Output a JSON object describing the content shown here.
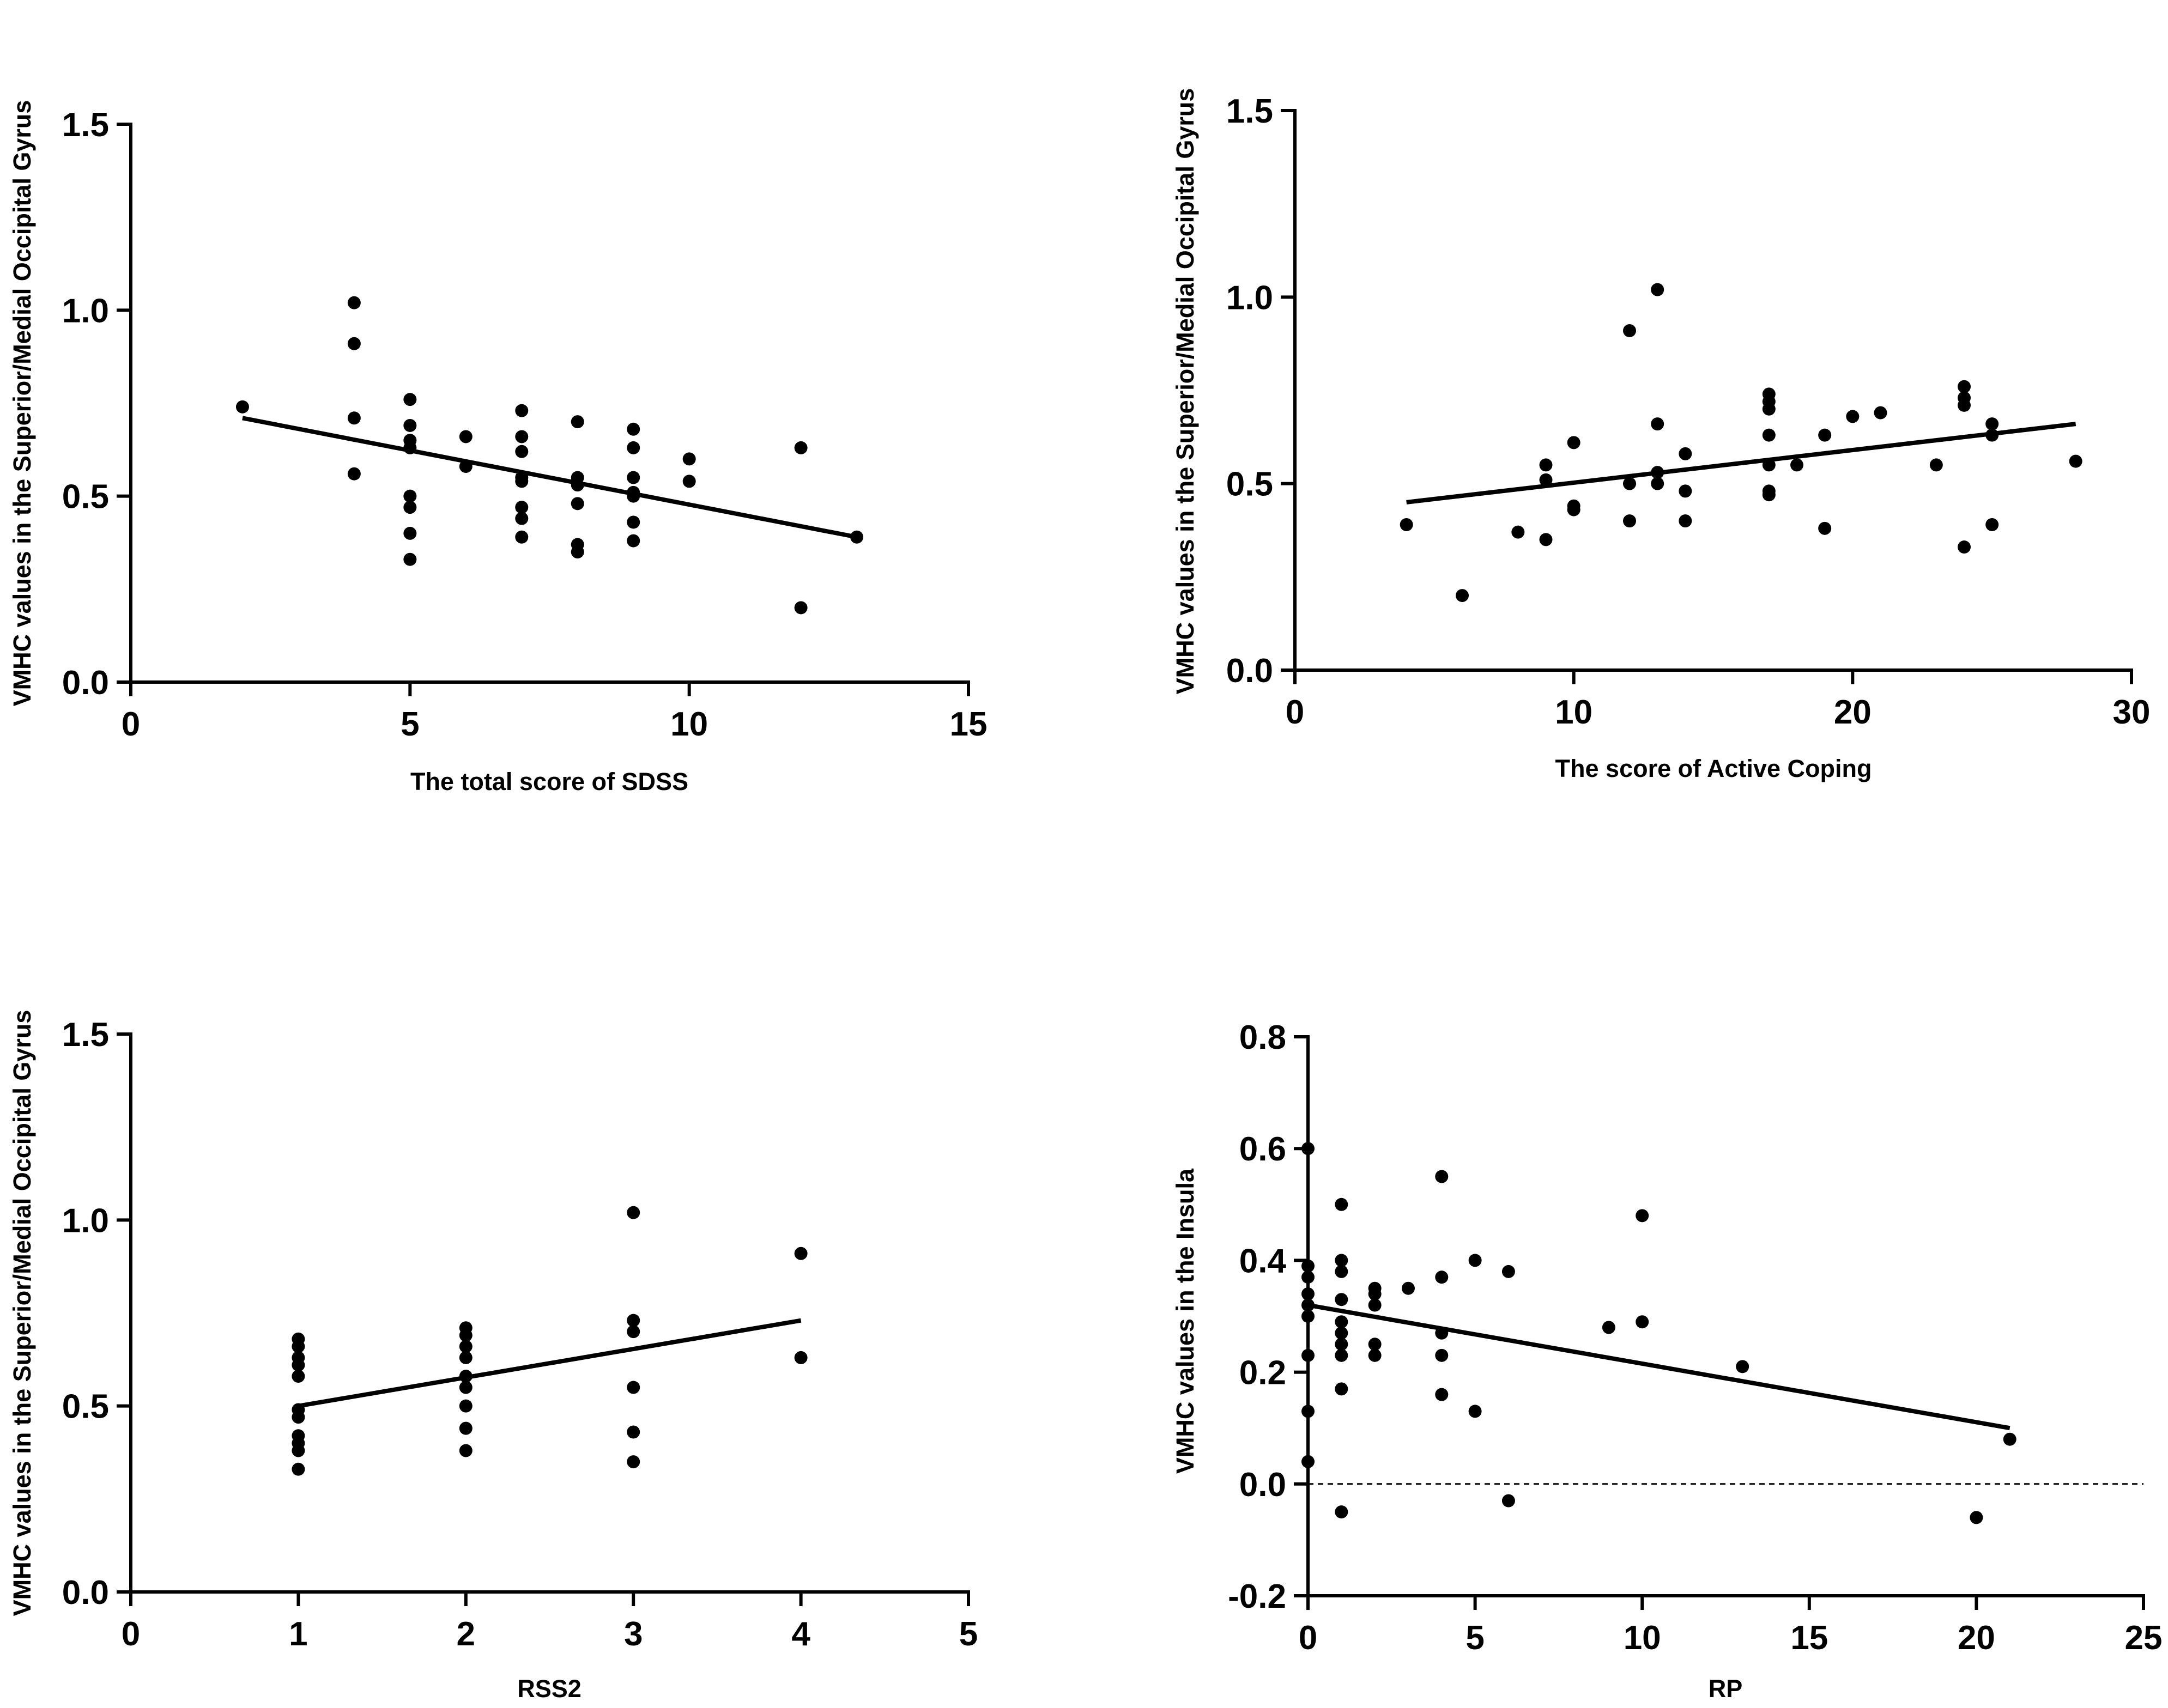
{
  "chart_data": [
    {
      "type": "scatter",
      "id": "sdss",
      "xlabel": "The total score of SDSS",
      "ylabel": "VMHC values in the Superior/Medial Occipital Gyrus",
      "xlim": [
        0,
        15
      ],
      "ylim": [
        0,
        1.5
      ],
      "xticks": [
        0,
        5,
        10,
        15
      ],
      "yticks": [
        0.0,
        0.5,
        1.0,
        1.5
      ],
      "xtick_labels": [
        "0",
        "5",
        "10",
        "15"
      ],
      "ytick_labels": [
        "0.0",
        "0.5",
        "1.0",
        "1.5"
      ],
      "points": [
        [
          2,
          0.74
        ],
        [
          4,
          1.02
        ],
        [
          4,
          0.91
        ],
        [
          4,
          0.71
        ],
        [
          4,
          0.56
        ],
        [
          5,
          0.76
        ],
        [
          5,
          0.69
        ],
        [
          5,
          0.65
        ],
        [
          5,
          0.63
        ],
        [
          5,
          0.5
        ],
        [
          5,
          0.47
        ],
        [
          5,
          0.4
        ],
        [
          5,
          0.33
        ],
        [
          6,
          0.66
        ],
        [
          6,
          0.58
        ],
        [
          7,
          0.73
        ],
        [
          7,
          0.66
        ],
        [
          7,
          0.62
        ],
        [
          7,
          0.55
        ],
        [
          7,
          0.54
        ],
        [
          7,
          0.47
        ],
        [
          7,
          0.44
        ],
        [
          7,
          0.39
        ],
        [
          8,
          0.7
        ],
        [
          8,
          0.55
        ],
        [
          8,
          0.53
        ],
        [
          8,
          0.48
        ],
        [
          8,
          0.37
        ],
        [
          8,
          0.35
        ],
        [
          9,
          0.68
        ],
        [
          9,
          0.63
        ],
        [
          9,
          0.55
        ],
        [
          9,
          0.51
        ],
        [
          9,
          0.5
        ],
        [
          9,
          0.43
        ],
        [
          9,
          0.38
        ],
        [
          10,
          0.6
        ],
        [
          10,
          0.54
        ],
        [
          12,
          0.63
        ],
        [
          12,
          0.2
        ],
        [
          13,
          0.39
        ]
      ],
      "fit_line": [
        [
          2,
          0.71
        ],
        [
          13,
          0.39
        ]
      ]
    },
    {
      "type": "scatter",
      "id": "active-coping",
      "xlabel": "The score of Active Coping",
      "ylabel": "VMHC values in the Superior/Medial Occipital Gyrus",
      "xlim": [
        0,
        30
      ],
      "ylim": [
        0,
        1.5
      ],
      "xticks": [
        0,
        10,
        20,
        30
      ],
      "yticks": [
        0.0,
        0.5,
        1.0,
        1.5
      ],
      "xtick_labels": [
        "0",
        "10",
        "20",
        "30"
      ],
      "ytick_labels": [
        "0.0",
        "0.5",
        "1.0",
        "1.5"
      ],
      "points": [
        [
          4,
          0.39
        ],
        [
          6,
          0.2
        ],
        [
          8,
          0.37
        ],
        [
          9,
          0.55
        ],
        [
          9,
          0.51
        ],
        [
          9,
          0.35
        ],
        [
          10,
          0.61
        ],
        [
          10,
          0.44
        ],
        [
          10,
          0.43
        ],
        [
          12,
          0.91
        ],
        [
          12,
          0.5
        ],
        [
          12,
          0.4
        ],
        [
          13,
          1.02
        ],
        [
          13,
          0.66
        ],
        [
          13,
          0.53
        ],
        [
          13,
          0.5
        ],
        [
          14,
          0.58
        ],
        [
          14,
          0.48
        ],
        [
          14,
          0.4
        ],
        [
          17,
          0.74
        ],
        [
          17,
          0.72
        ],
        [
          17,
          0.7
        ],
        [
          17,
          0.63
        ],
        [
          17,
          0.55
        ],
        [
          17,
          0.48
        ],
        [
          17,
          0.47
        ],
        [
          18,
          0.55
        ],
        [
          19,
          0.63
        ],
        [
          19,
          0.38
        ],
        [
          20,
          0.68
        ],
        [
          21,
          0.69
        ],
        [
          23,
          0.55
        ],
        [
          24,
          0.76
        ],
        [
          24,
          0.73
        ],
        [
          24,
          0.71
        ],
        [
          24,
          0.33
        ],
        [
          25,
          0.66
        ],
        [
          25,
          0.63
        ],
        [
          25,
          0.39
        ],
        [
          28,
          0.56
        ]
      ],
      "fit_line": [
        [
          4,
          0.45
        ],
        [
          28,
          0.66
        ]
      ]
    },
    {
      "type": "scatter",
      "id": "rss2",
      "xlabel": "RSS2",
      "ylabel": "VMHC values in the Superior/Medial Occipital Gyrus",
      "xlim": [
        0,
        5
      ],
      "ylim": [
        0,
        1.5
      ],
      "xticks": [
        0,
        1,
        2,
        3,
        4,
        5
      ],
      "yticks": [
        0.0,
        0.5,
        1.0,
        1.5
      ],
      "xtick_labels": [
        "0",
        "1",
        "2",
        "3",
        "4",
        "5"
      ],
      "ytick_labels": [
        "0.0",
        "0.5",
        "1.0",
        "1.5"
      ],
      "points": [
        [
          1,
          0.68
        ],
        [
          1,
          0.66
        ],
        [
          1,
          0.63
        ],
        [
          1,
          0.61
        ],
        [
          1,
          0.58
        ],
        [
          1,
          0.49
        ],
        [
          1,
          0.47
        ],
        [
          1,
          0.42
        ],
        [
          1,
          0.4
        ],
        [
          1,
          0.38
        ],
        [
          1,
          0.33
        ],
        [
          2,
          0.71
        ],
        [
          2,
          0.69
        ],
        [
          2,
          0.66
        ],
        [
          2,
          0.63
        ],
        [
          2,
          0.58
        ],
        [
          2,
          0.55
        ],
        [
          2,
          0.5
        ],
        [
          2,
          0.44
        ],
        [
          2,
          0.38
        ],
        [
          3,
          1.02
        ],
        [
          3,
          0.73
        ],
        [
          3,
          0.7
        ],
        [
          3,
          0.55
        ],
        [
          3,
          0.43
        ],
        [
          3,
          0.35
        ],
        [
          4,
          0.91
        ],
        [
          4,
          0.63
        ]
      ],
      "fit_line": [
        [
          1,
          0.5
        ],
        [
          4,
          0.73
        ]
      ]
    },
    {
      "type": "scatter",
      "id": "rp",
      "xlabel": "RP",
      "ylabel": "VMHC values in the Insula",
      "xlim": [
        0,
        25
      ],
      "ylim": [
        -0.2,
        0.8
      ],
      "xticks": [
        0,
        5,
        10,
        15,
        20,
        25
      ],
      "yticks": [
        -0.2,
        0.0,
        0.2,
        0.4,
        0.6,
        0.8
      ],
      "xtick_labels": [
        "0",
        "5",
        "10",
        "15",
        "20",
        "25"
      ],
      "ytick_labels": [
        "-0.2",
        "0.0",
        "0.2",
        "0.4",
        "0.6",
        "0.8"
      ],
      "points": [
        [
          0,
          0.6
        ],
        [
          0,
          0.39
        ],
        [
          0,
          0.37
        ],
        [
          0,
          0.34
        ],
        [
          0,
          0.32
        ],
        [
          0,
          0.3
        ],
        [
          0,
          0.23
        ],
        [
          0,
          0.13
        ],
        [
          0,
          0.04
        ],
        [
          1,
          0.5
        ],
        [
          1,
          0.4
        ],
        [
          1,
          0.38
        ],
        [
          1,
          0.33
        ],
        [
          1,
          0.29
        ],
        [
          1,
          0.27
        ],
        [
          1,
          0.25
        ],
        [
          1,
          0.23
        ],
        [
          1,
          0.17
        ],
        [
          1,
          -0.05
        ],
        [
          2,
          0.35
        ],
        [
          2,
          0.34
        ],
        [
          2,
          0.32
        ],
        [
          2,
          0.25
        ],
        [
          2,
          0.23
        ],
        [
          3,
          0.35
        ],
        [
          4,
          0.55
        ],
        [
          4,
          0.37
        ],
        [
          4,
          0.27
        ],
        [
          4,
          0.23
        ],
        [
          4,
          0.16
        ],
        [
          5,
          0.4
        ],
        [
          5,
          0.13
        ],
        [
          6,
          0.38
        ],
        [
          6,
          -0.03
        ],
        [
          9,
          0.28
        ],
        [
          10,
          0.48
        ],
        [
          10,
          0.29
        ],
        [
          13,
          0.21
        ],
        [
          20,
          -0.06
        ],
        [
          21,
          0.08
        ]
      ],
      "fit_line": [
        [
          0,
          0.32
        ],
        [
          21,
          0.1
        ]
      ],
      "reference_line_y": 0
    }
  ]
}
